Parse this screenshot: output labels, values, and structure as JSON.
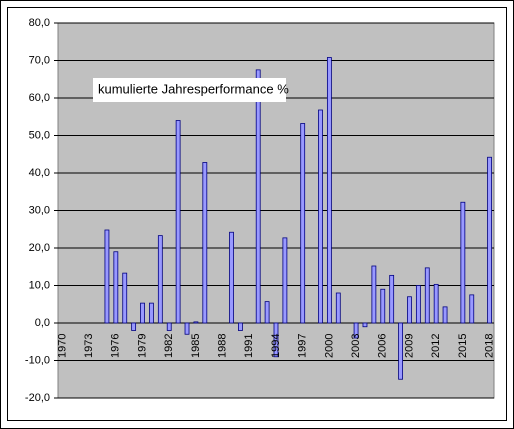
{
  "chart_data": {
    "type": "bar",
    "annotation": "kumulierte Jahresperformance %",
    "categories": [
      "1970",
      null,
      null,
      "1973",
      null,
      null,
      "1976",
      null,
      null,
      "1979",
      null,
      null,
      "1982",
      null,
      null,
      "1985",
      null,
      null,
      "1988",
      null,
      null,
      "1991",
      null,
      null,
      "1994",
      null,
      null,
      "1997",
      null,
      null,
      "2000",
      null,
      null,
      "2003",
      null,
      null,
      "2006",
      null,
      null,
      "2009",
      null,
      null,
      "2012",
      null,
      null,
      "2015",
      null,
      null,
      "2018"
    ],
    "values": [
      0,
      0,
      0,
      0,
      0,
      24.8,
      19,
      13.3,
      -2,
      5.3,
      5.3,
      23.3,
      -2,
      54,
      -3,
      0.3,
      42.8,
      0,
      0,
      24.2,
      -2,
      0,
      67.5,
      5.7,
      -9,
      22.7,
      0,
      53.2,
      0,
      56.8,
      70.8,
      8,
      0,
      -4,
      -1,
      15.2,
      9,
      12.7,
      -15,
      7,
      10,
      14.7,
      10.3,
      4.3,
      0,
      32.2,
      7.5,
      0,
      44.2
    ],
    "color": "#9999ff",
    "ylim": [
      -20,
      80
    ],
    "yticks": [
      {
        "value": -20,
        "label": "-20,0"
      },
      {
        "value": -10,
        "label": "-10,0"
      },
      {
        "value": 0,
        "label": "0,0"
      },
      {
        "value": 10,
        "label": "10,0"
      },
      {
        "value": 20,
        "label": "20,0"
      },
      {
        "value": 30,
        "label": "30,0"
      },
      {
        "value": 40,
        "label": "40,0"
      },
      {
        "value": 50,
        "label": "50,0"
      },
      {
        "value": 60,
        "label": "60,0"
      },
      {
        "value": 70,
        "label": "70,0"
      },
      {
        "value": 80,
        "label": "80,0"
      }
    ],
    "grid": true
  }
}
